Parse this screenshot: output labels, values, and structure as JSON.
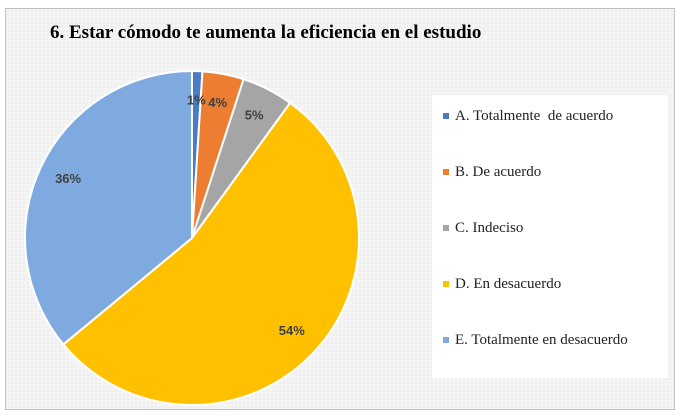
{
  "chart_data": {
    "type": "pie",
    "title": "6. Estar cómodo te aumenta la eficiencia en el estudio",
    "categories": [
      "A. Totalmente  de acuerdo",
      "B. De acuerdo",
      "C. Indeciso",
      "D. En desacuerdo",
      "E. Totalmente en desacuerdo"
    ],
    "values": [
      1,
      4,
      5,
      54,
      36
    ],
    "value_labels": [
      "1%",
      "4%",
      "5%",
      "54%",
      "36%"
    ],
    "colors": [
      "#4a7cc4",
      "#ed7d31",
      "#a5a5a5",
      "#ffc000",
      "#7faadf"
    ],
    "legend": "right"
  }
}
